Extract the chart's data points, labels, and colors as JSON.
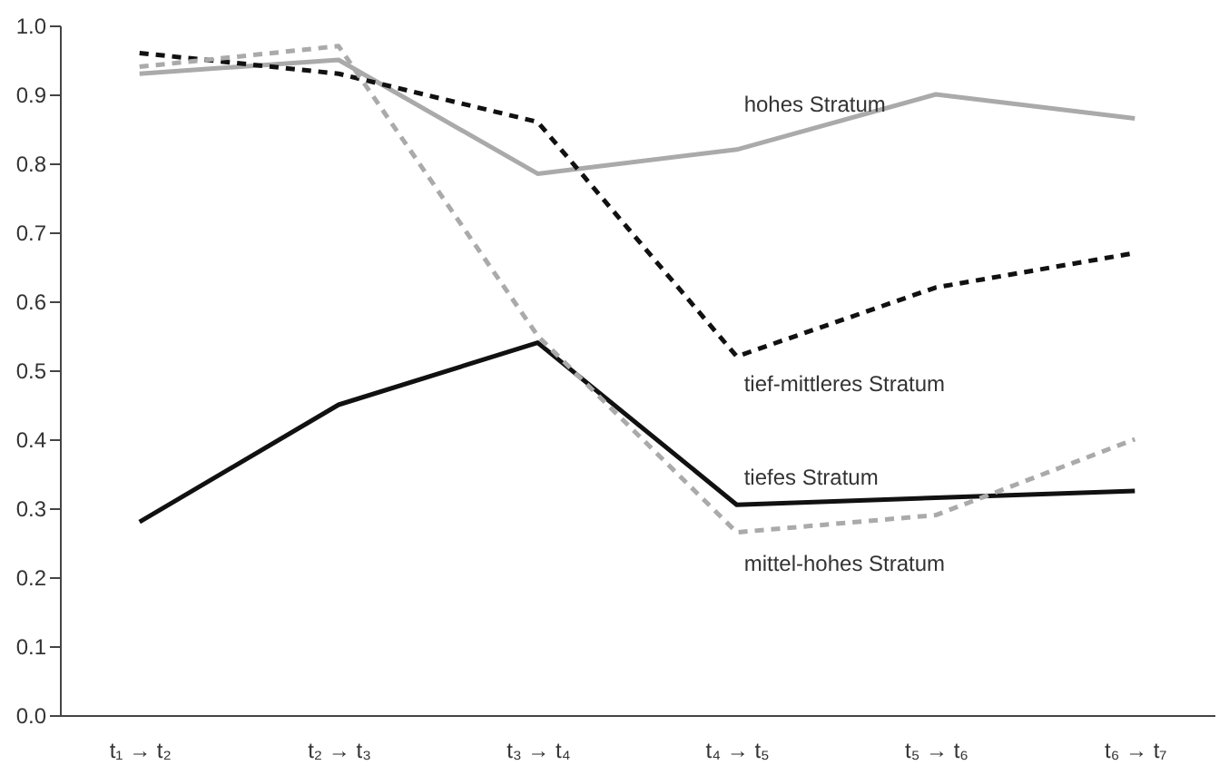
{
  "chart_data": {
    "type": "line",
    "categories": [
      "t₁ → t₂",
      "t₂ → t₃",
      "t₃ → t₄",
      "t₄ → t₅",
      "t₅ → t₆",
      "t₆ → t₇"
    ],
    "series": [
      {
        "name": "hohes Stratum",
        "color": "#aaaaaa",
        "line_style": "solid",
        "values": [
          0.93,
          0.95,
          0.785,
          0.82,
          0.9,
          0.865
        ]
      },
      {
        "name": "tief-mittleres Stratum",
        "color": "#111111",
        "line_style": "dashed",
        "values": [
          0.96,
          0.93,
          0.86,
          0.52,
          0.62,
          0.67
        ]
      },
      {
        "name": "tiefes Stratum",
        "color": "#111111",
        "line_style": "solid",
        "values": [
          0.28,
          0.45,
          0.54,
          0.305,
          0.315,
          0.325
        ]
      },
      {
        "name": "mittel-hohes Stratum",
        "color": "#aaaaaa",
        "line_style": "dashed",
        "values": [
          0.94,
          0.97,
          0.55,
          0.265,
          0.29,
          0.4
        ]
      }
    ],
    "ylim": [
      0,
      1
    ],
    "yticks": [
      {
        "value": 0,
        "label": "0.0"
      },
      0.1,
      0.2,
      0.3,
      0.4,
      0.5,
      0.6,
      0.7,
      0.8,
      0.9,
      {
        "value": 1,
        "label": "1.0"
      }
    ],
    "grid": false,
    "legend": false,
    "marker": "none"
  }
}
